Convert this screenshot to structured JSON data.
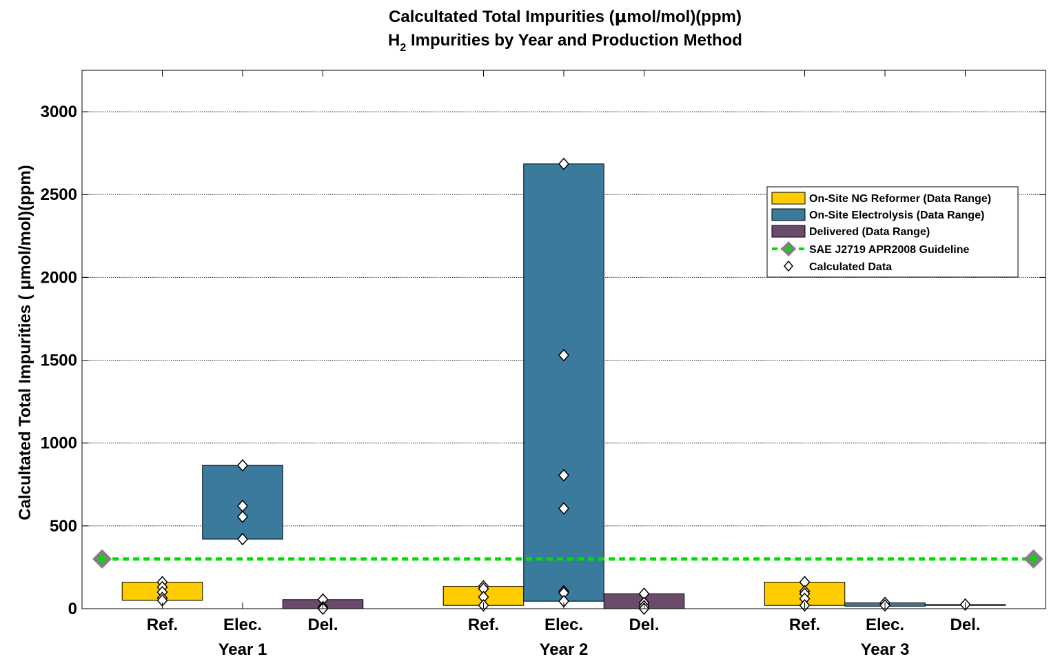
{
  "chart_data": {
    "type": "bar",
    "title_line1_pre": "Calcultated Total Impurities (",
    "title_line1_mu": "μ",
    "title_line1_post": "mol/mol)(ppm)",
    "title_line2_pre": "H",
    "title_line2_sub": "2",
    "title_line2_post": " Impurities by Year and Production Method",
    "ylabel": "Calcultated Total Impurities ( μmol/mol)(ppm)",
    "ylim": [
      0,
      3250
    ],
    "yticks": [
      0,
      500,
      1000,
      1500,
      2000,
      2500,
      3000
    ],
    "grid": true,
    "legend_position": "top-right",
    "groups": [
      {
        "label": "Year 1",
        "center": 2
      },
      {
        "label": "Year 2",
        "center": 6
      },
      {
        "label": "Year 3",
        "center": 10
      }
    ],
    "xticks": [
      {
        "x": 1,
        "label": "Ref."
      },
      {
        "x": 2,
        "label": "Elec."
      },
      {
        "x": 3,
        "label": "Del."
      },
      {
        "x": 5,
        "label": "Ref."
      },
      {
        "x": 6,
        "label": "Elec."
      },
      {
        "x": 7,
        "label": "Del."
      },
      {
        "x": 9,
        "label": "Ref."
      },
      {
        "x": 10,
        "label": "Elec."
      },
      {
        "x": 11,
        "label": "Del."
      }
    ],
    "xlim": [
      0,
      12
    ],
    "series": [
      {
        "name": "On-Site NG Reformer (Data Range)",
        "color": "#FFCC00",
        "ranges": [
          {
            "x": 1,
            "low": 50,
            "high": 160
          },
          {
            "x": 5,
            "low": 20,
            "high": 135
          },
          {
            "x": 9,
            "low": 20,
            "high": 160
          }
        ]
      },
      {
        "name": "On-Site Electrolysis (Data Range)",
        "color": "#3A7A9C",
        "ranges": [
          {
            "x": 2,
            "low": 420,
            "high": 865
          },
          {
            "x": 6,
            "low": 45,
            "high": 2685
          },
          {
            "x": 10,
            "low": 15,
            "high": 35
          }
        ]
      },
      {
        "name": "Delivered (Data Range)",
        "color": "#6B4B6B",
        "ranges": [
          {
            "x": 3,
            "low": 0,
            "high": 55
          },
          {
            "x": 7,
            "low": 0,
            "high": 90
          },
          {
            "x": 11,
            "low": 20,
            "high": 25
          }
        ]
      }
    ],
    "guideline": {
      "name": "SAE J2719 APR2008 Guideline",
      "value": 300,
      "color": "#00E000",
      "marker_color": "#808080"
    },
    "calculated_data": {
      "name": "Calculated Data",
      "points": [
        {
          "x": 1,
          "y": 160
        },
        {
          "x": 1,
          "y": 130
        },
        {
          "x": 1,
          "y": 100
        },
        {
          "x": 1,
          "y": 65
        },
        {
          "x": 1,
          "y": 50
        },
        {
          "x": 2,
          "y": 865
        },
        {
          "x": 2,
          "y": 620
        },
        {
          "x": 2,
          "y": 555
        },
        {
          "x": 2,
          "y": 420
        },
        {
          "x": 3,
          "y": 55
        },
        {
          "x": 3,
          "y": 10
        },
        {
          "x": 3,
          "y": 0
        },
        {
          "x": 5,
          "y": 135
        },
        {
          "x": 5,
          "y": 120
        },
        {
          "x": 5,
          "y": 70
        },
        {
          "x": 5,
          "y": 20
        },
        {
          "x": 6,
          "y": 2685
        },
        {
          "x": 6,
          "y": 1530
        },
        {
          "x": 6,
          "y": 805
        },
        {
          "x": 6,
          "y": 605
        },
        {
          "x": 6,
          "y": 105
        },
        {
          "x": 6,
          "y": 95
        },
        {
          "x": 6,
          "y": 45
        },
        {
          "x": 7,
          "y": 90
        },
        {
          "x": 7,
          "y": 35
        },
        {
          "x": 7,
          "y": 15
        },
        {
          "x": 7,
          "y": 0
        },
        {
          "x": 9,
          "y": 160
        },
        {
          "x": 9,
          "y": 105
        },
        {
          "x": 9,
          "y": 90
        },
        {
          "x": 9,
          "y": 60
        },
        {
          "x": 9,
          "y": 20
        },
        {
          "x": 10,
          "y": 35
        },
        {
          "x": 10,
          "y": 20
        },
        {
          "x": 11,
          "y": 25
        }
      ]
    }
  }
}
